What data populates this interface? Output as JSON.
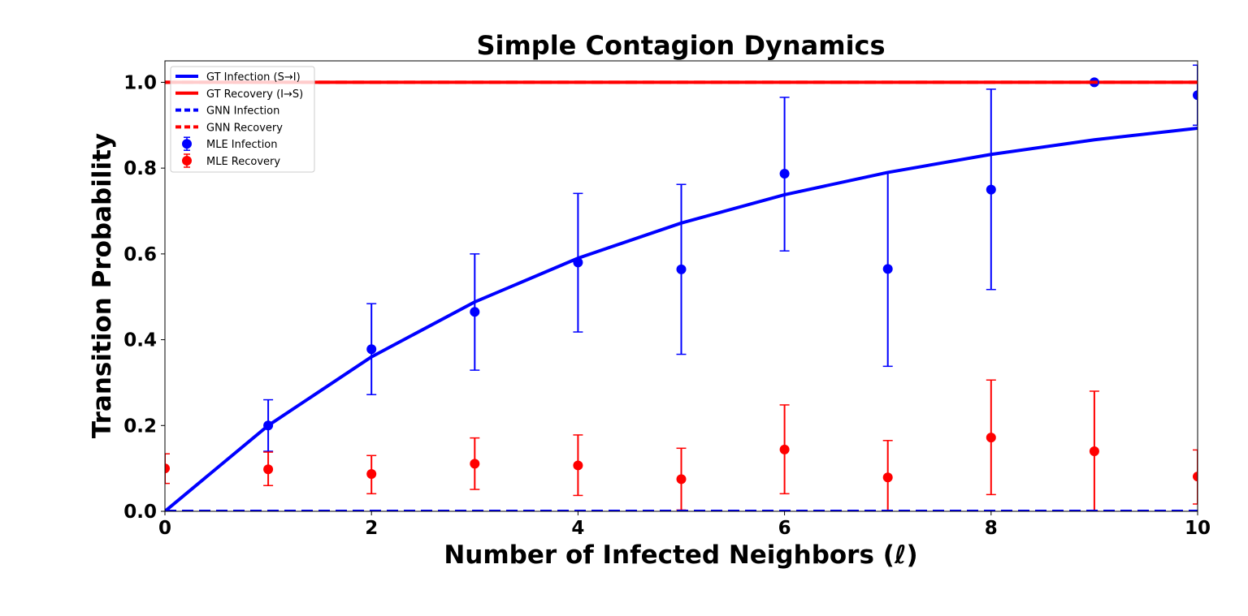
{
  "chart_data": {
    "type": "line",
    "title": "Simple Contagion Dynamics",
    "xlabel": "Number of Infected Neighbors (ℓ)",
    "ylabel": "Transition Probability",
    "xlim": [
      0,
      10
    ],
    "ylim": [
      0,
      1.05
    ],
    "x_ticks": [
      0,
      2,
      4,
      6,
      8,
      10
    ],
    "y_ticks": [
      0.0,
      0.2,
      0.4,
      0.6,
      0.8,
      1.0
    ],
    "x_tick_labels": [
      "0",
      "2",
      "4",
      "6",
      "8",
      "10"
    ],
    "y_tick_labels": [
      "0.0",
      "0.2",
      "0.4",
      "0.6",
      "0.8",
      "1.0"
    ],
    "grid": false,
    "legend_position": "top-left",
    "x": [
      0,
      1,
      2,
      3,
      4,
      5,
      6,
      7,
      8,
      9,
      10
    ],
    "series": [
      {
        "name": "GT Infection (S→I)",
        "kind": "line",
        "style": "solid",
        "color": "#0000ff",
        "values": [
          0.0,
          0.2,
          0.36,
          0.488,
          0.59,
          0.672,
          0.738,
          0.79,
          0.832,
          0.866,
          0.893
        ]
      },
      {
        "name": "GT Recovery (I→S)",
        "kind": "line",
        "style": "solid",
        "color": "#ff0000",
        "values": [
          1.0,
          1.0,
          1.0,
          1.0,
          1.0,
          1.0,
          1.0,
          1.0,
          1.0,
          1.0,
          1.0
        ]
      },
      {
        "name": "GNN Infection",
        "kind": "line",
        "style": "dashed",
        "color": "#0000ff",
        "values": [
          0.0,
          0.0,
          0.0,
          0.0,
          0.0,
          0.0,
          0.0,
          0.0,
          0.0,
          0.0,
          0.0
        ]
      },
      {
        "name": "GNN Recovery",
        "kind": "line",
        "style": "dashed",
        "color": "#ff0000",
        "values": [
          1.0,
          1.0,
          1.0,
          1.0,
          1.0,
          1.0,
          1.0,
          1.0,
          1.0,
          1.0,
          1.0
        ]
      },
      {
        "name": "MLE Infection",
        "kind": "errorbar",
        "color": "#0000ff",
        "values": [
          null,
          0.2,
          0.378,
          0.465,
          0.58,
          0.564,
          0.787,
          0.565,
          0.75,
          1.0,
          0.97
        ],
        "lower": [
          null,
          0.14,
          0.272,
          0.329,
          0.418,
          0.366,
          0.607,
          0.338,
          0.517,
          null,
          0.9
        ],
        "upper": [
          null,
          0.26,
          0.484,
          0.6,
          0.741,
          0.762,
          0.965,
          0.79,
          0.984,
          null,
          1.04
        ]
      },
      {
        "name": "MLE Recovery",
        "kind": "errorbar",
        "color": "#ff0000",
        "values": [
          0.1,
          0.098,
          0.087,
          0.111,
          0.107,
          0.075,
          0.144,
          0.079,
          0.172,
          0.14,
          0.081
        ],
        "lower": [
          0.065,
          0.06,
          0.041,
          0.051,
          0.037,
          0.003,
          0.041,
          0.0,
          0.039,
          0.0,
          0.017
        ],
        "upper": [
          0.134,
          0.138,
          0.13,
          0.171,
          0.178,
          0.147,
          0.248,
          0.165,
          0.306,
          0.28,
          0.143
        ]
      }
    ]
  }
}
